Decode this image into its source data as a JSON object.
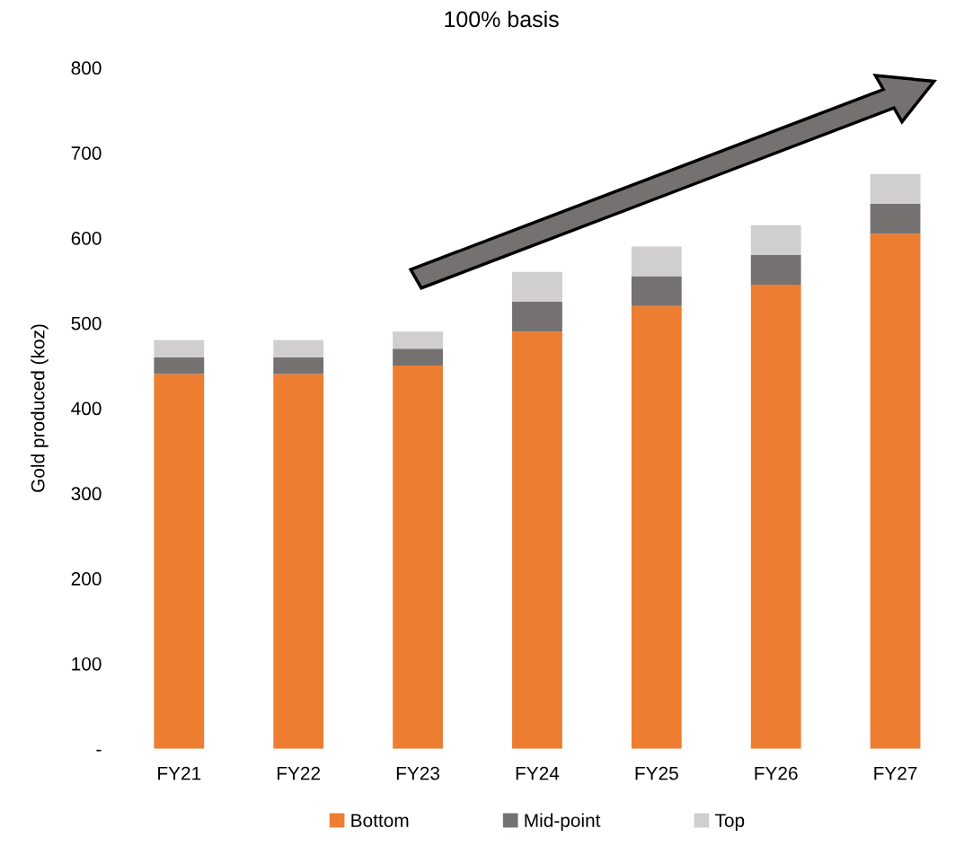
{
  "chart_data": {
    "type": "bar",
    "title": "100% basis",
    "ylabel": "Gold produced (koz)",
    "categories": [
      "FY21",
      "FY22",
      "FY23",
      "FY24",
      "FY25",
      "FY26",
      "FY27"
    ],
    "stacked": true,
    "series": [
      {
        "name": "Bottom",
        "color": "#ed7d31",
        "values": [
          440,
          440,
          450,
          490,
          520,
          545,
          605
        ]
      },
      {
        "name": "Mid-point",
        "color": "#767171",
        "values": [
          20,
          20,
          20,
          35,
          35,
          35,
          35
        ]
      },
      {
        "name": "Top",
        "color": "#d0cece",
        "values": [
          20,
          20,
          20,
          35,
          35,
          35,
          35
        ]
      }
    ],
    "ylim": [
      0,
      800
    ],
    "yticks": [
      {
        "value": 0,
        "label": "-"
      },
      100,
      200,
      300,
      400,
      500,
      600,
      700,
      800
    ],
    "grid": false,
    "legend": "bottom"
  }
}
